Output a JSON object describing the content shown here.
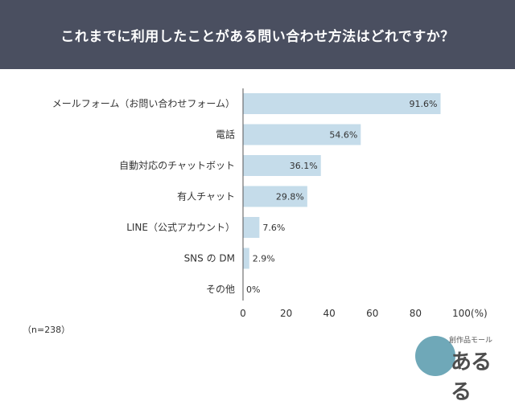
{
  "header": {
    "title": "これまでに利用したことがある問い合わせ方法はどれですか？"
  },
  "chart_data": {
    "type": "bar",
    "orientation": "horizontal",
    "categories": [
      "メールフォーム（お問い合わせフォーム）",
      "電話",
      "自動対応のチャットボット",
      "有人チャット",
      "LINE（公式アカウント）",
      "SNS の DM",
      "その他"
    ],
    "values": [
      91.6,
      54.6,
      36.1,
      29.8,
      7.6,
      2.9,
      0
    ],
    "value_labels": [
      "91.6%",
      "54.6%",
      "36.1%",
      "29.8%",
      "7.6%",
      "2.9%",
      "0%"
    ],
    "xlim": [
      0,
      100
    ],
    "xticks": [
      "0",
      "20",
      "40",
      "60",
      "80",
      "100(%)"
    ],
    "bar_color": "#c5dcea",
    "note": "（n=238）"
  },
  "logo": {
    "small_text": "創作品モール",
    "main_text": "あるる"
  }
}
